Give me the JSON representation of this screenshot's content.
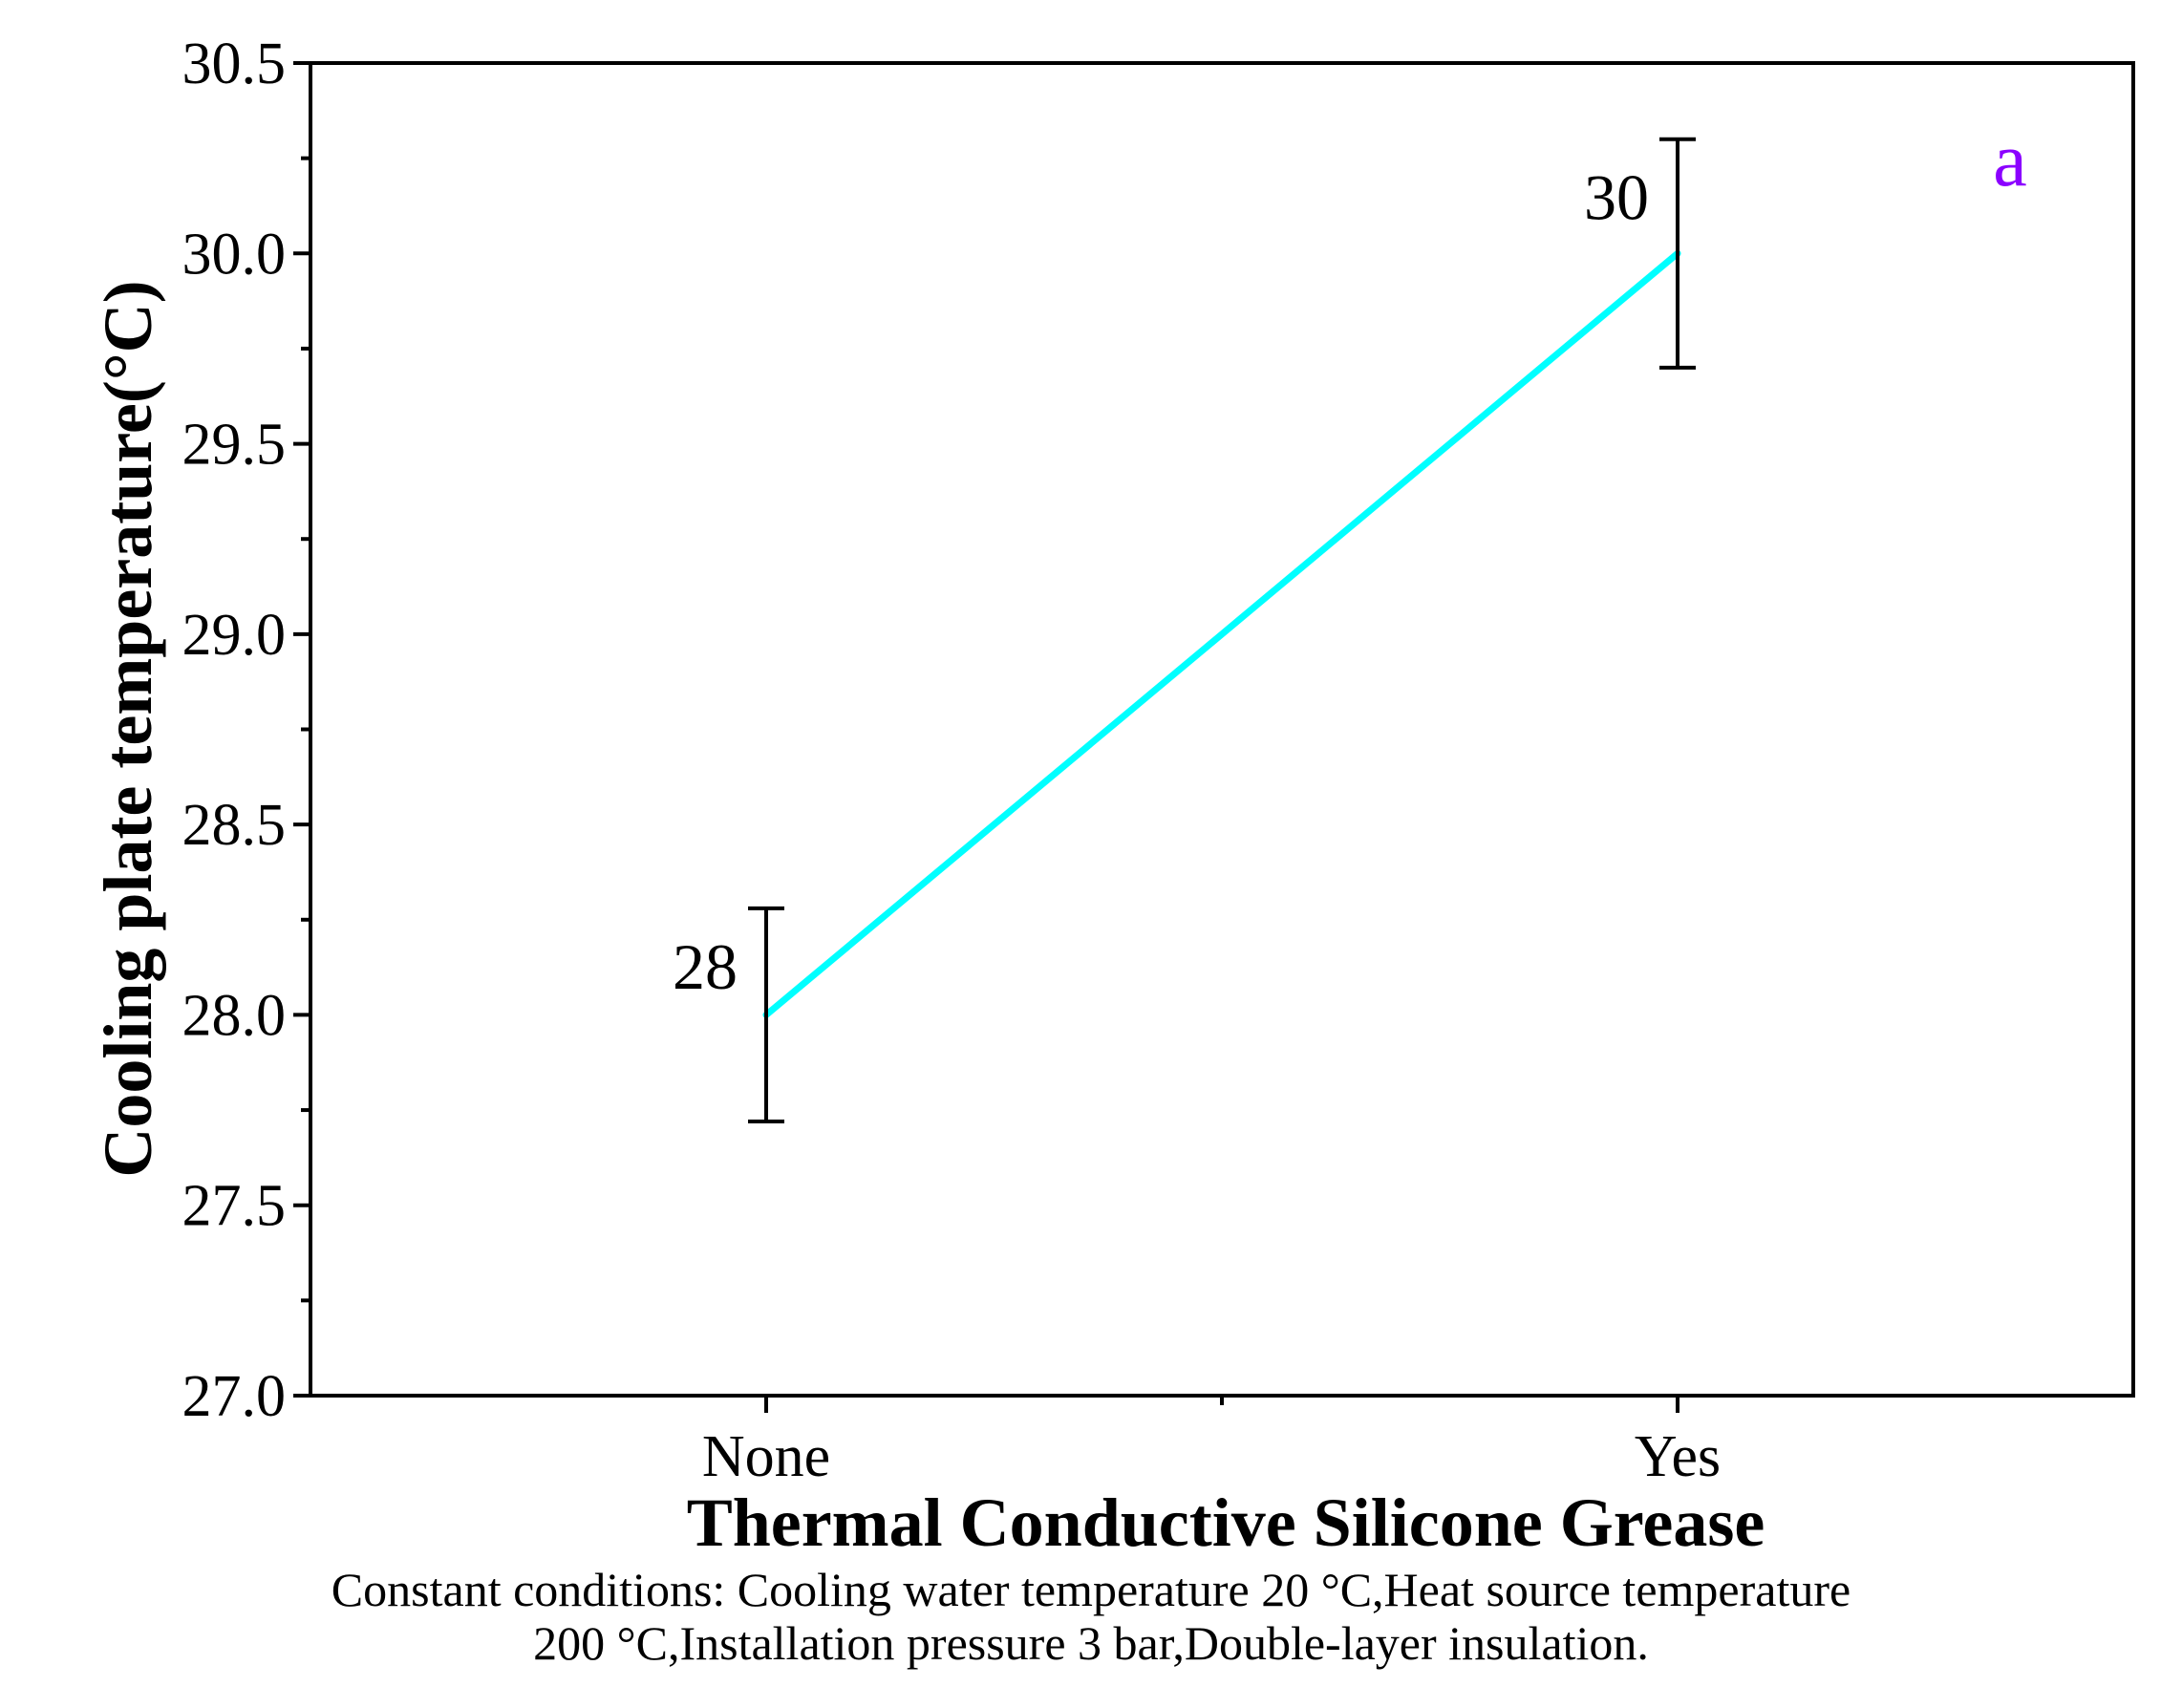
{
  "chart_data": {
    "type": "line",
    "categories": [
      "None",
      "Yes"
    ],
    "series": [
      {
        "values": [
          28,
          30
        ],
        "error": [
          0.28,
          0.3
        ],
        "color": "#00FFFF"
      }
    ],
    "data_labels": [
      "28",
      "30"
    ],
    "xlabel": "Thermal Conductive Silicone Grease",
    "ylabel": "Cooling plate temperature(°C)",
    "ylim": [
      27.0,
      30.5
    ],
    "yticks": [
      "27.0",
      "27.5",
      "28.0",
      "28.5",
      "29.0",
      "29.5",
      "30.0",
      "30.5"
    ],
    "panel_label": "a",
    "panel_label_color": "#8B00FF",
    "grid": false
  },
  "caption": {
    "line1": "Constant conditions: Cooling water temperature 20 °C,Heat source temperature",
    "line2": "200 °C,Installation pressure 3 bar,Double-layer insulation."
  }
}
